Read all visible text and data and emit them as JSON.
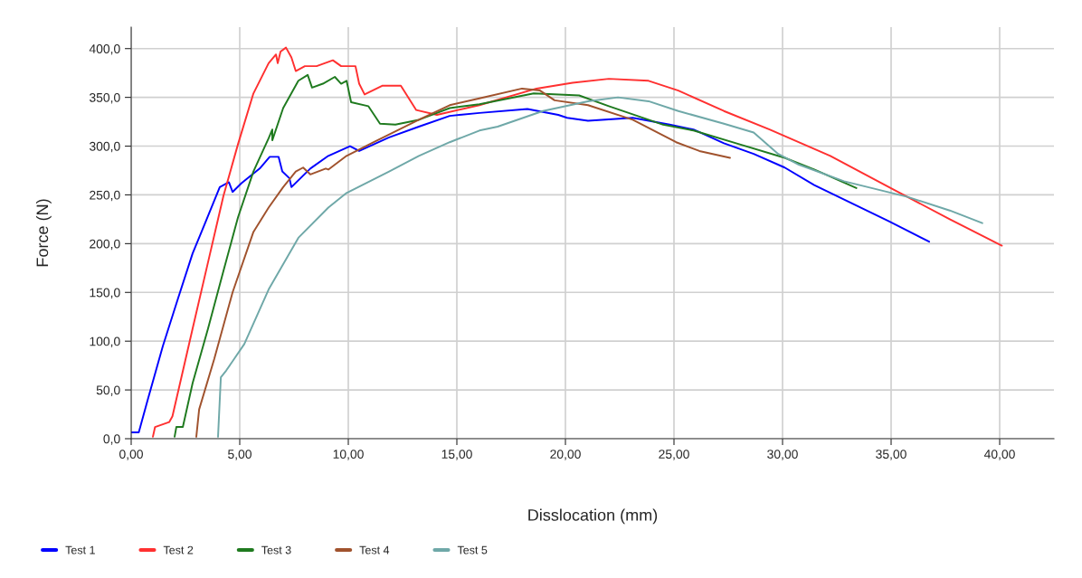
{
  "chart_data": {
    "type": "line",
    "xlabel": "Disslocation (mm)",
    "ylabel": "Force (N)",
    "xlim": [
      0,
      42.5
    ],
    "ylim": [
      0,
      422
    ],
    "xticks": [
      {
        "value": 0,
        "label": "0,00"
      },
      {
        "value": 5,
        "label": "5,00"
      },
      {
        "value": 10,
        "label": "10,00"
      },
      {
        "value": 15,
        "label": "15,00"
      },
      {
        "value": 20,
        "label": "20,00"
      },
      {
        "value": 25,
        "label": "25,00"
      },
      {
        "value": 30,
        "label": "30,00"
      },
      {
        "value": 35,
        "label": "35,00"
      },
      {
        "value": 40,
        "label": "40,00"
      }
    ],
    "yticks": [
      {
        "value": 0,
        "label": "0,0"
      },
      {
        "value": 50,
        "label": "50,0"
      },
      {
        "value": 100,
        "label": "100,0"
      },
      {
        "value": 150,
        "label": "150,0"
      },
      {
        "value": 200,
        "label": "200,0"
      },
      {
        "value": 250,
        "label": "250,0"
      },
      {
        "value": 300,
        "label": "300,0"
      },
      {
        "value": 350,
        "label": "350,0"
      },
      {
        "value": 400,
        "label": "400,0"
      }
    ],
    "grid": true,
    "legend": "bottom",
    "marker": "none",
    "line_style": "solid",
    "series": [
      {
        "name": "Test 1",
        "color": "#0000ff",
        "x": [
          0,
          0.35,
          0.75,
          1.46,
          2.16,
          2.83,
          3.46,
          4.08,
          4.5,
          4.67,
          5.08,
          5.92,
          6.38,
          6.79,
          6.96,
          7.29,
          7.38,
          8.25,
          9.08,
          10.08,
          10.5,
          11.88,
          13.25,
          14.67,
          16.04,
          18.25,
          19.67,
          20.08,
          21.04,
          23.1,
          24.8,
          25.9,
          27.3,
          28.67,
          30.1,
          31.46,
          34.9,
          36.75
        ],
        "values": [
          6.5,
          6.5,
          39,
          95,
          144,
          190,
          224,
          258,
          263,
          253,
          262,
          277,
          289,
          289,
          274,
          267,
          258,
          277,
          290,
          300,
          295,
          309,
          320,
          331,
          334,
          338,
          332,
          329,
          326,
          329,
          322,
          317,
          303,
          292,
          278,
          260,
          223,
          202
        ]
      },
      {
        "name": "Test 2",
        "color": "#ff3030",
        "x": [
          1.0,
          1.1,
          1.75,
          1.9,
          2.83,
          3.54,
          4.25,
          4.92,
          5.63,
          6.33,
          6.67,
          6.75,
          6.88,
          7.13,
          7.38,
          7.58,
          8.0,
          8.54,
          9.29,
          9.67,
          10.33,
          10.5,
          10.75,
          11.58,
          12.42,
          13.13,
          14.08,
          16.04,
          18.67,
          20.33,
          22.0,
          23.83,
          25.2,
          27.3,
          29.4,
          32.2,
          34.9,
          37.7,
          40.1
        ],
        "values": [
          2,
          12,
          17,
          23,
          113,
          181,
          249,
          302,
          354,
          385,
          394,
          385,
          397,
          401,
          391,
          377,
          382,
          382,
          388,
          382,
          382,
          364,
          353,
          362,
          362,
          337,
          332,
          342,
          359,
          365,
          369,
          367,
          357,
          336,
          317,
          290,
          258,
          225,
          198
        ]
      },
      {
        "name": "Test 3",
        "color": "#1f7a1f",
        "x": [
          2.0,
          2.08,
          2.38,
          2.83,
          3.54,
          4.25,
          4.92,
          5.63,
          6.33,
          6.5,
          6.5,
          7.0,
          7.7,
          8.13,
          8.33,
          8.83,
          9.38,
          9.67,
          9.92,
          10.13,
          10.92,
          11.46,
          12.17,
          13.25,
          14.67,
          16.04,
          18.54,
          20.63,
          22.0,
          24.5,
          25.9,
          28.0,
          30.1,
          31.46,
          33.4
        ],
        "values": [
          2,
          12,
          12,
          57,
          113,
          172,
          227,
          274,
          308,
          317,
          306,
          339,
          367,
          373,
          360,
          364,
          371,
          364,
          367,
          345,
          341,
          323,
          322,
          327,
          339,
          343,
          354,
          352,
          341,
          322,
          316,
          302,
          288,
          276,
          257
        ]
      },
      {
        "name": "Test 4",
        "color": "#a0522d",
        "x": [
          3.0,
          3.13,
          3.83,
          4.67,
          5.63,
          6.33,
          7.0,
          7.58,
          7.92,
          8.25,
          8.96,
          9.08,
          9.92,
          11.17,
          13.25,
          14.67,
          16.04,
          18.0,
          18.83,
          19.5,
          21.04,
          23.1,
          25.1,
          26.17,
          27.58
        ],
        "values": [
          2,
          30,
          82,
          150,
          212,
          237,
          258,
          274,
          278,
          271,
          277,
          276,
          290,
          304,
          327,
          342,
          349,
          359,
          357,
          347,
          342,
          327,
          304,
          295,
          288
        ]
      },
      {
        "name": "Test 5",
        "color": "#6fa8a8",
        "x": [
          4.0,
          4.13,
          4.38,
          5.21,
          6.33,
          7.7,
          9.08,
          9.92,
          11.88,
          13.25,
          14.67,
          16.04,
          16.88,
          18.96,
          21.04,
          22.42,
          23.83,
          25.2,
          27.3,
          28.67,
          29.8,
          30.75,
          32.83,
          35.75,
          37.7,
          39.2
        ],
        "values": [
          2,
          63,
          70,
          97,
          153,
          206,
          237,
          252,
          274,
          290,
          304,
          316,
          320,
          336,
          346,
          350,
          346,
          336,
          323,
          314,
          292,
          281,
          264,
          248,
          234,
          221
        ]
      }
    ]
  }
}
